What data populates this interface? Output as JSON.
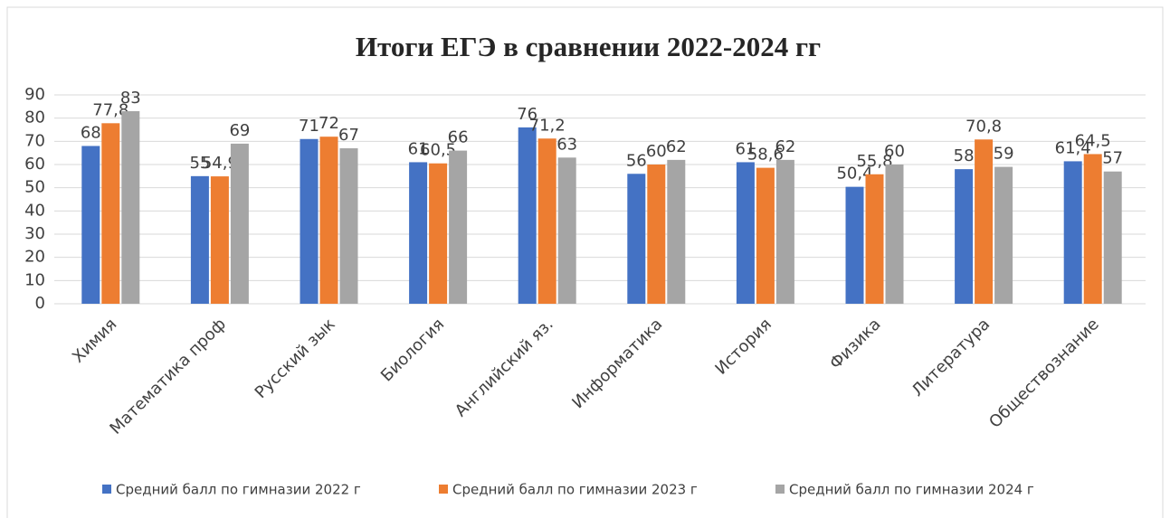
{
  "chart_data": {
    "type": "bar",
    "title": "Итоги ЕГЭ в сравнении 2022-2024 гг",
    "categories": [
      "Химия",
      "Математика проф",
      "Русский зык",
      "Биология",
      "Английский яз.",
      "Информатика",
      "История",
      "Физика",
      "Литература",
      "Обществознание"
    ],
    "series": [
      {
        "name": "Средний балл по гимназии 2022 г",
        "color": "#4472c4",
        "values": [
          68,
          55,
          71,
          61,
          76,
          56,
          61,
          50.4,
          58,
          61.4
        ],
        "value_labels": [
          "68",
          "55",
          "71",
          "61",
          "76",
          "56",
          "61",
          "50,4",
          "58",
          "61,4"
        ]
      },
      {
        "name": "Средний балл по гимназии 2023 г",
        "color": "#ed7d31",
        "values": [
          77.8,
          54.9,
          72,
          60.5,
          71.2,
          60,
          58.6,
          55.8,
          70.8,
          64.5
        ],
        "value_labels": [
          "77,8",
          "54,9",
          "72",
          "60,5",
          "71,2",
          "60",
          "58,6",
          "55,8",
          "70,8",
          "64,5"
        ]
      },
      {
        "name": "Средний балл по гимназии 2024 г",
        "color": "#a5a5a5",
        "values": [
          83,
          69,
          67,
          66,
          63,
          62,
          62,
          60,
          59,
          57
        ],
        "value_labels": [
          "83",
          "69",
          "67",
          "66",
          "63",
          "62",
          "62",
          "60",
          "59",
          "57"
        ]
      }
    ],
    "ylim": [
      0,
      90
    ],
    "yticks": [
      0,
      10,
      20,
      30,
      40,
      50,
      60,
      70,
      80,
      90
    ],
    "grid": true,
    "legend": "bottom"
  }
}
